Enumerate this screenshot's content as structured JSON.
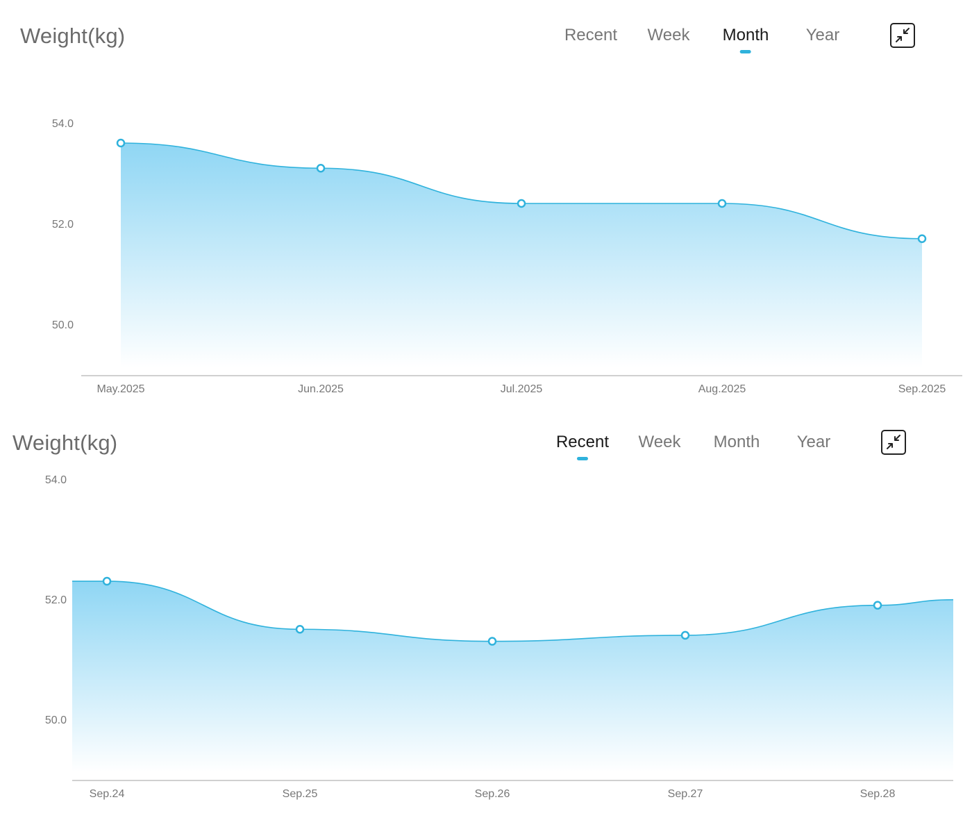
{
  "charts": [
    {
      "title": "Weight(kg)",
      "tabs": [
        {
          "label": "Recent",
          "active": false
        },
        {
          "label": "Week",
          "active": false
        },
        {
          "label": "Month",
          "active": true
        },
        {
          "label": "Year",
          "active": false
        }
      ],
      "collapse_icon": "collapse-arrows-icon"
    },
    {
      "title": "Weight(kg)",
      "tabs": [
        {
          "label": "Recent",
          "active": true
        },
        {
          "label": "Week",
          "active": false
        },
        {
          "label": "Month",
          "active": false
        },
        {
          "label": "Year",
          "active": false
        }
      ],
      "collapse_icon": "collapse-arrows-icon"
    }
  ],
  "colors": {
    "line": "#2fb2dc",
    "fill_top": "#8fd6f4",
    "fill_bottom": "#ffffff",
    "axis": "#d0d0d0",
    "marker_fill": "#ffffff"
  },
  "chart_data": [
    {
      "type": "area",
      "title": "Weight(kg)",
      "xlabel": "",
      "ylabel": "",
      "categories": [
        "May.2025",
        "Jun.2025",
        "Jul.2025",
        "Aug.2025",
        "Sep.2025"
      ],
      "values": [
        53.6,
        53.1,
        52.4,
        52.4,
        51.7
      ],
      "y_ticks": [
        "50.0",
        "52.0",
        "54.0"
      ],
      "ylim": [
        49.0,
        54.0
      ],
      "grid": false,
      "legend": "none"
    },
    {
      "type": "area",
      "title": "Weight(kg)",
      "xlabel": "",
      "ylabel": "",
      "categories": [
        "Sep.24",
        "Sep.25",
        "Sep.26",
        "Sep.27",
        "Sep.28"
      ],
      "values": [
        52.3,
        51.5,
        51.3,
        51.4,
        51.9
      ],
      "y_ticks": [
        "50.0",
        "52.0",
        "54.0"
      ],
      "ylim": [
        49.0,
        54.0
      ],
      "grid": false,
      "legend": "none"
    }
  ]
}
